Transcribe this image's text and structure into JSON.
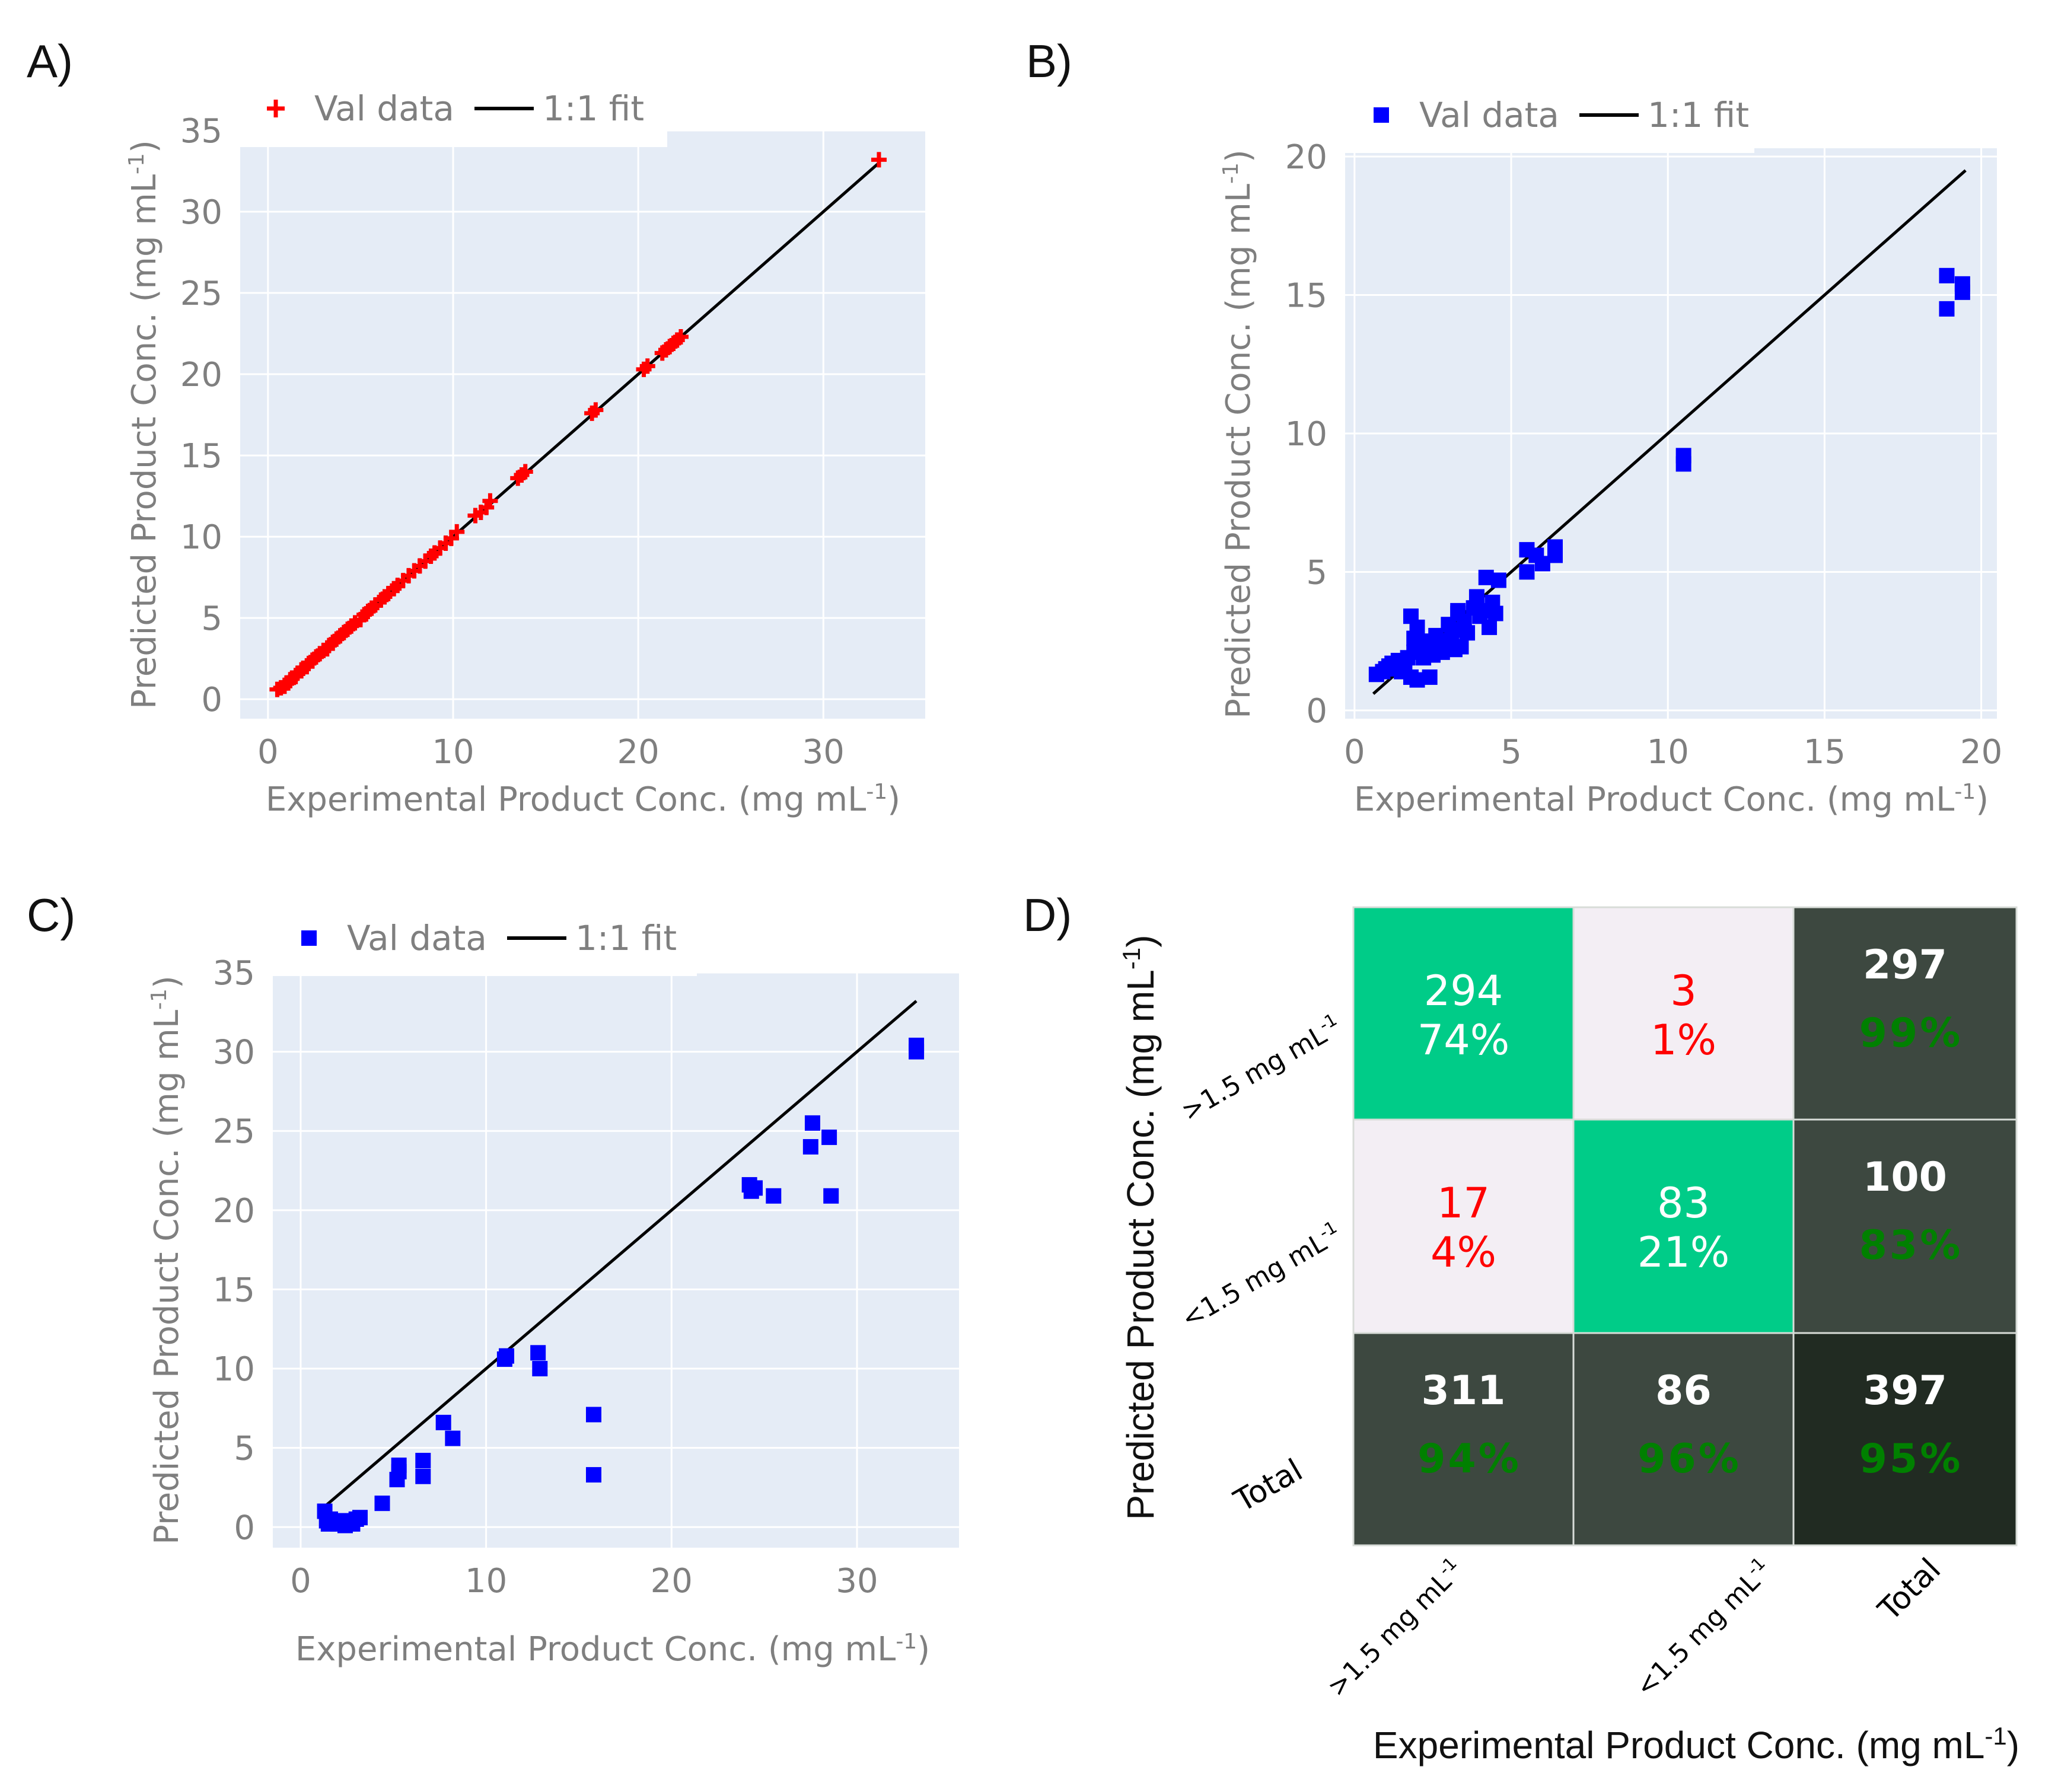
{
  "colors": {
    "plot_bg": "#e5ecf6",
    "grid": "#ffffff",
    "tick_text": "#7f7f7f",
    "red_marker": "#ff0000",
    "blue_marker": "#0000ff",
    "fit_line": "#000000",
    "cm_correct": "#00cc88",
    "cm_error": "#f3eef4",
    "cm_total": "#3d4840",
    "cm_grand_total": "#212b22",
    "cm_green_text": "#008000",
    "cm_red_text": "#ff0000"
  },
  "legend": {
    "val_data": "Val data",
    "fit": "1:1 fit"
  },
  "chart_data": [
    {
      "panel": "A)",
      "type": "scatter",
      "marker": "cross",
      "marker_color": "red",
      "xlabel": "Experimental Product Conc. (mg mL",
      "ylabel": "Predicted Product Conc. (mg mL",
      "unit_sup": "-1",
      "unit_close": ")",
      "xlim": [
        -1.5,
        35.5
      ],
      "ylim": [
        -1.2,
        35
      ],
      "xticks": [
        0,
        10,
        20,
        30
      ],
      "yticks": [
        0,
        5,
        10,
        15,
        20,
        25,
        30,
        35
      ],
      "fit_line": [
        [
          0.5,
          0.5
        ],
        [
          33,
          33
        ]
      ],
      "x": [
        0.5,
        0.7,
        0.9,
        1.0,
        1.1,
        1.2,
        1.3,
        1.5,
        1.6,
        1.8,
        1.9,
        2.1,
        2.2,
        2.4,
        2.6,
        2.8,
        3.0,
        3.2,
        3.3,
        3.5,
        3.7,
        3.9,
        4.1,
        4.3,
        4.5,
        4.7,
        5.0,
        5.2,
        5.4,
        5.6,
        5.8,
        6.1,
        6.3,
        6.5,
        6.8,
        7.0,
        7.3,
        7.6,
        7.9,
        8.2,
        8.5,
        8.8,
        9.0,
        9.3,
        9.6,
        9.9,
        10.2,
        11.2,
        11.5,
        11.8,
        12.0,
        13.5,
        13.7,
        13.9,
        17.5,
        17.7,
        20.3,
        20.5,
        21.3,
        21.5,
        21.7,
        21.9,
        22.1,
        22.3,
        33.0
      ],
      "y": [
        0.6,
        0.7,
        0.8,
        1.0,
        1.0,
        1.2,
        1.3,
        1.4,
        1.6,
        1.8,
        1.9,
        2.0,
        2.2,
        2.4,
        2.6,
        2.8,
        3.0,
        3.1,
        3.3,
        3.5,
        3.7,
        3.9,
        4.1,
        4.3,
        4.5,
        4.7,
        4.9,
        5.2,
        5.4,
        5.6,
        5.8,
        6.1,
        6.3,
        6.5,
        6.8,
        7.0,
        7.3,
        7.6,
        7.9,
        8.2,
        8.5,
        8.8,
        9.0,
        9.3,
        9.6,
        9.9,
        10.3,
        11.3,
        11.5,
        11.8,
        12.2,
        13.6,
        13.8,
        14.0,
        17.6,
        17.8,
        20.3,
        20.5,
        21.3,
        21.5,
        21.7,
        21.9,
        22.1,
        22.3,
        33.2
      ]
    },
    {
      "panel": "B)",
      "type": "scatter",
      "marker": "square",
      "marker_color": "blue",
      "xlabel": "Experimental Product Conc. (mg mL",
      "ylabel": "Predicted Product Conc. (mg mL",
      "unit_sup": "-1",
      "unit_close": ")",
      "xlim": [
        -0.3,
        20.5
      ],
      "ylim": [
        -0.3,
        20.3
      ],
      "xticks": [
        0,
        5,
        10,
        15,
        20
      ],
      "yticks": [
        0,
        5,
        10,
        15,
        20
      ],
      "fit_line": [
        [
          0.6,
          0.6
        ],
        [
          19.5,
          19.5
        ]
      ],
      "x": [
        0.7,
        0.9,
        1.0,
        1.1,
        1.2,
        1.3,
        1.4,
        1.5,
        1.6,
        1.7,
        1.8,
        1.9,
        2.0,
        1.8,
        2.1,
        2.2,
        2.3,
        2.4,
        2.5,
        2.6,
        2.7,
        2.8,
        2.9,
        3.0,
        3.1,
        3.2,
        3.3,
        3.4,
        3.5,
        3.6,
        3.8,
        3.9,
        4.0,
        4.1,
        4.2,
        4.3,
        4.4,
        4.5,
        4.6,
        1.9,
        2.0,
        2.4,
        3.2,
        3.3,
        5.5,
        5.5,
        5.8,
        6.0,
        6.4,
        6.4,
        10.5,
        10.5,
        18.9,
        18.9,
        19.4,
        19.4
      ],
      "y": [
        1.3,
        1.4,
        1.5,
        1.6,
        1.7,
        1.5,
        1.8,
        1.4,
        1.6,
        1.9,
        1.2,
        2.1,
        1.1,
        3.4,
        2.2,
        1.9,
        2.5,
        1.2,
        2.0,
        2.7,
        2.3,
        2.1,
        2.5,
        3.1,
        2.6,
        2.9,
        3.6,
        2.3,
        3.2,
        2.8,
        3.7,
        4.1,
        3.4,
        3.6,
        4.8,
        3.0,
        3.9,
        3.5,
        4.7,
        2.6,
        3.0,
        2.3,
        2.2,
        3.5,
        5.0,
        5.8,
        5.6,
        5.3,
        5.9,
        5.6,
        8.9,
        9.2,
        14.5,
        15.7,
        15.1,
        15.4
      ]
    },
    {
      "panel": "C)",
      "type": "scatter",
      "marker": "square",
      "marker_color": "blue",
      "xlabel": "Experimental Product Conc. (mg mL",
      "ylabel": "Predicted Product Conc. (mg mL",
      "unit_sup": "-1",
      "unit_close": ")",
      "xlim": [
        -1.5,
        35.5
      ],
      "ylim": [
        -1.3,
        35
      ],
      "xticks": [
        0,
        10,
        20,
        30
      ],
      "yticks": [
        0,
        5,
        10,
        15,
        20,
        25,
        30,
        35
      ],
      "fit_line": [
        [
          1.3,
          1.3
        ],
        [
          33.2,
          33.2
        ]
      ],
      "x": [
        1.3,
        1.4,
        1.5,
        1.6,
        1.8,
        2.0,
        2.2,
        2.4,
        2.6,
        2.8,
        3.0,
        3.2,
        4.4,
        5.2,
        5.3,
        5.3,
        6.6,
        6.6,
        7.7,
        8.2,
        11.0,
        11.1,
        12.8,
        12.9,
        15.8,
        15.8,
        24.2,
        24.3,
        24.5,
        25.5,
        27.5,
        27.6,
        28.5,
        28.6,
        33.2,
        33.2
      ],
      "y": [
        1.0,
        0.4,
        0.2,
        0.5,
        0.3,
        0.2,
        0.4,
        0.1,
        0.3,
        0.2,
        0.5,
        0.6,
        1.5,
        3.0,
        3.5,
        3.9,
        3.2,
        4.2,
        6.6,
        5.6,
        10.6,
        10.8,
        11.0,
        10.0,
        7.1,
        3.3,
        21.6,
        21.2,
        21.4,
        20.9,
        24.0,
        25.5,
        24.6,
        20.9,
        30.0,
        30.4
      ]
    },
    {
      "panel": "D)",
      "type": "heatmap",
      "xlabel": "Experimental Product Conc. (mg mL",
      "ylabel": "Predicted Product Conc. (mg mL",
      "unit_sup": "-1",
      "unit_close": ")",
      "col_labels": [
        ">1.5 mg mL",
        "<1.5 mg mL",
        "Total"
      ],
      "row_labels": [
        ">1.5 mg mL",
        "<1.5 mg mL",
        "Total"
      ],
      "cells": [
        [
          {
            "count": "294",
            "pct": "74%",
            "kind": "correct"
          },
          {
            "count": "3",
            "pct": "1%",
            "kind": "error"
          },
          {
            "count": "297",
            "pct": "99%",
            "kind": "total"
          }
        ],
        [
          {
            "count": "17",
            "pct": "4%",
            "kind": "error"
          },
          {
            "count": "83",
            "pct": "21%",
            "kind": "correct"
          },
          {
            "count": "100",
            "pct": "83%",
            "kind": "total"
          }
        ],
        [
          {
            "count": "311",
            "pct": "94%",
            "kind": "total"
          },
          {
            "count": "86",
            "pct": "96%",
            "kind": "total"
          },
          {
            "count": "397",
            "pct": "95%",
            "kind": "grand"
          }
        ]
      ]
    }
  ]
}
